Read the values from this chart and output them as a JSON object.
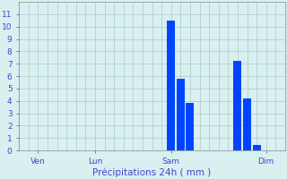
{
  "title": "",
  "xlabel": "Précipitations 24h ( mm )",
  "ylabel": "",
  "bar_values": [
    10.5,
    5.8,
    3.8,
    0,
    7.2,
    4.2,
    0.4
  ],
  "bar_positions": [
    16,
    17,
    18,
    22,
    23,
    24,
    25
  ],
  "bar_color": "#0044ff",
  "background_color": "#d8f0f0",
  "xlim": [
    0,
    28
  ],
  "ylim": [
    0,
    12
  ],
  "yticks": [
    0,
    1,
    2,
    3,
    4,
    5,
    6,
    7,
    8,
    9,
    10,
    11
  ],
  "xtick_positions": [
    2,
    8,
    16,
    26
  ],
  "xtick_labels": [
    "Ven",
    "Lun",
    "Sam",
    "Dim"
  ],
  "grid_color": "#adc8c8",
  "xlabel_color": "#4444cc",
  "tick_color": "#4444cc",
  "bar_width": 0.85,
  "tick_fontsize": 6.5,
  "xlabel_fontsize": 7.5
}
